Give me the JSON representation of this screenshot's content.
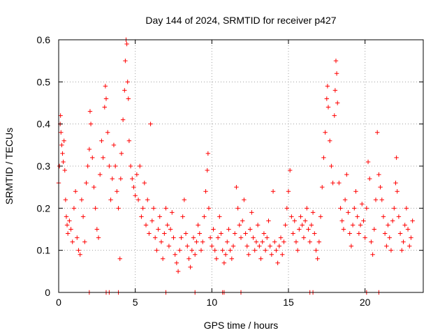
{
  "chart_data": {
    "type": "scatter",
    "title": "Day 144 of 2024, SRMTID for receiver p427",
    "xlabel": "GPS time / hours",
    "ylabel": "SRMTID / TECUs",
    "xlim": [
      0,
      23.8
    ],
    "ylim": [
      0,
      0.6
    ],
    "xticks": [
      0,
      5,
      10,
      15,
      20
    ],
    "yticks": [
      0,
      0.1,
      0.2,
      0.3,
      0.4,
      0.5,
      0.6
    ],
    "xtick_labels": [
      "0",
      "5",
      "10",
      "15",
      "20"
    ],
    "ytick_labels": [
      "0",
      "0.1",
      "0.2",
      "0.3",
      "0.4",
      "0.5",
      "0.6"
    ],
    "grid": true,
    "marker": "+",
    "color": "#ff0000",
    "series": [
      {
        "name": "SRMTID",
        "points": [
          [
            0.0,
            0.26
          ],
          [
            0.05,
            0.3
          ],
          [
            0.1,
            0.4
          ],
          [
            0.12,
            0.42
          ],
          [
            0.15,
            0.38
          ],
          [
            0.2,
            0.35
          ],
          [
            0.25,
            0.33
          ],
          [
            0.3,
            0.31
          ],
          [
            0.35,
            0.36
          ],
          [
            0.4,
            0.29
          ],
          [
            0.45,
            0.22
          ],
          [
            0.5,
            0.18
          ],
          [
            0.55,
            0.16
          ],
          [
            0.6,
            0.14
          ],
          [
            0.7,
            0.17
          ],
          [
            0.8,
            0.15
          ],
          [
            0.9,
            0.12
          ],
          [
            1.0,
            0.2
          ],
          [
            1.1,
            0.24
          ],
          [
            1.2,
            0.13
          ],
          [
            1.3,
            0.1
          ],
          [
            1.4,
            0.09
          ],
          [
            1.5,
            0.22
          ],
          [
            1.6,
            0.18
          ],
          [
            1.7,
            0.12
          ],
          [
            1.8,
            0.26
          ],
          [
            1.9,
            0.3
          ],
          [
            2.0,
            0.34
          ],
          [
            2.05,
            0.43
          ],
          [
            2.1,
            0.4
          ],
          [
            2.2,
            0.32
          ],
          [
            2.3,
            0.25
          ],
          [
            2.4,
            0.2
          ],
          [
            2.5,
            0.15
          ],
          [
            2.6,
            0.13
          ],
          [
            2.7,
            0.28
          ],
          [
            2.8,
            0.36
          ],
          [
            2.9,
            0.32
          ],
          [
            3.0,
            0.44
          ],
          [
            3.05,
            0.49
          ],
          [
            3.1,
            0.46
          ],
          [
            3.2,
            0.38
          ],
          [
            3.3,
            0.3
          ],
          [
            3.4,
            0.22
          ],
          [
            3.5,
            0.27
          ],
          [
            3.6,
            0.35
          ],
          [
            3.7,
            0.3
          ],
          [
            3.8,
            0.24
          ],
          [
            3.9,
            0.2
          ],
          [
            4.0,
            0.08
          ],
          [
            4.05,
            0.27
          ],
          [
            4.1,
            0.33
          ],
          [
            4.2,
            0.41
          ],
          [
            4.3,
            0.48
          ],
          [
            4.35,
            0.55
          ],
          [
            4.4,
            0.6
          ],
          [
            4.45,
            0.59
          ],
          [
            4.5,
            0.5
          ],
          [
            4.55,
            0.46
          ],
          [
            4.6,
            0.36
          ],
          [
            4.7,
            0.3
          ],
          [
            4.8,
            0.27
          ],
          [
            4.9,
            0.25
          ],
          [
            5.0,
            0.23
          ],
          [
            5.1,
            0.28
          ],
          [
            5.2,
            0.22
          ],
          [
            5.3,
            0.3
          ],
          [
            5.4,
            0.18
          ],
          [
            5.5,
            0.2
          ],
          [
            5.6,
            0.26
          ],
          [
            5.7,
            0.16
          ],
          [
            5.8,
            0.22
          ],
          [
            5.9,
            0.14
          ],
          [
            6.0,
            0.4
          ],
          [
            6.1,
            0.17
          ],
          [
            6.2,
            0.2
          ],
          [
            6.3,
            0.13
          ],
          [
            6.4,
            0.1
          ],
          [
            6.5,
            0.15
          ],
          [
            6.6,
            0.18
          ],
          [
            6.7,
            0.12
          ],
          [
            6.8,
            0.08
          ],
          [
            6.9,
            0.14
          ],
          [
            7.0,
            0.2
          ],
          [
            7.1,
            0.16
          ],
          [
            7.2,
            0.11
          ],
          [
            7.3,
            0.15
          ],
          [
            7.4,
            0.19
          ],
          [
            7.5,
            0.13
          ],
          [
            7.6,
            0.09
          ],
          [
            7.7,
            0.07
          ],
          [
            7.8,
            0.05
          ],
          [
            7.9,
            0.1
          ],
          [
            8.0,
            0.13
          ],
          [
            8.1,
            0.18
          ],
          [
            8.2,
            0.22
          ],
          [
            8.3,
            0.14
          ],
          [
            8.4,
            0.11
          ],
          [
            8.5,
            0.08
          ],
          [
            8.6,
            0.06
          ],
          [
            8.7,
            0.1
          ],
          [
            8.8,
            0.13
          ],
          [
            8.9,
            0.09
          ],
          [
            9.0,
            0.12
          ],
          [
            9.1,
            0.16
          ],
          [
            9.2,
            0.14
          ],
          [
            9.3,
            0.1
          ],
          [
            9.4,
            0.12
          ],
          [
            9.5,
            0.18
          ],
          [
            9.6,
            0.24
          ],
          [
            9.7,
            0.29
          ],
          [
            9.75,
            0.33
          ],
          [
            9.8,
            0.2
          ],
          [
            9.9,
            0.13
          ],
          [
            10.0,
            0.11
          ],
          [
            10.1,
            0.15
          ],
          [
            10.2,
            0.1
          ],
          [
            10.3,
            0.08
          ],
          [
            10.4,
            0.13
          ],
          [
            10.5,
            0.18
          ],
          [
            10.6,
            0.14
          ],
          [
            10.7,
            0.1
          ],
          [
            10.8,
            0.07
          ],
          [
            10.9,
            0.09
          ],
          [
            11.0,
            0.12
          ],
          [
            11.1,
            0.15
          ],
          [
            11.2,
            0.1
          ],
          [
            11.3,
            0.08
          ],
          [
            11.4,
            0.11
          ],
          [
            11.5,
            0.14
          ],
          [
            11.6,
            0.25
          ],
          [
            11.7,
            0.2
          ],
          [
            11.8,
            0.16
          ],
          [
            11.9,
            0.13
          ],
          [
            12.0,
            0.17
          ],
          [
            12.1,
            0.22
          ],
          [
            12.2,
            0.14
          ],
          [
            12.3,
            0.11
          ],
          [
            12.4,
            0.09
          ],
          [
            12.5,
            0.15
          ],
          [
            12.6,
            0.19
          ],
          [
            12.7,
            0.13
          ],
          [
            12.8,
            0.1
          ],
          [
            12.9,
            0.12
          ],
          [
            13.0,
            0.16
          ],
          [
            13.1,
            0.11
          ],
          [
            13.2,
            0.08
          ],
          [
            13.3,
            0.12
          ],
          [
            13.4,
            0.14
          ],
          [
            13.5,
            0.1
          ],
          [
            13.6,
            0.13
          ],
          [
            13.7,
            0.17
          ],
          [
            13.8,
            0.11
          ],
          [
            13.9,
            0.09
          ],
          [
            14.0,
            0.24
          ],
          [
            14.1,
            0.12
          ],
          [
            14.2,
            0.1
          ],
          [
            14.3,
            0.07
          ],
          [
            14.4,
            0.11
          ],
          [
            14.5,
            0.13
          ],
          [
            14.6,
            0.09
          ],
          [
            14.7,
            0.12
          ],
          [
            14.8,
            0.16
          ],
          [
            14.9,
            0.2
          ],
          [
            15.0,
            0.24
          ],
          [
            15.1,
            0.29
          ],
          [
            15.2,
            0.18
          ],
          [
            15.3,
            0.14
          ],
          [
            15.4,
            0.17
          ],
          [
            15.5,
            0.12
          ],
          [
            15.6,
            0.1
          ],
          [
            15.7,
            0.15
          ],
          [
            15.8,
            0.18
          ],
          [
            15.9,
            0.16
          ],
          [
            16.0,
            0.13
          ],
          [
            16.1,
            0.17
          ],
          [
            16.2,
            0.2
          ],
          [
            16.3,
            0.15
          ],
          [
            16.4,
            0.12
          ],
          [
            16.5,
            0.16
          ],
          [
            16.6,
            0.19
          ],
          [
            16.7,
            0.14
          ],
          [
            16.8,
            0.1
          ],
          [
            16.9,
            0.08
          ],
          [
            17.0,
            0.12
          ],
          [
            17.1,
            0.18
          ],
          [
            17.2,
            0.25
          ],
          [
            17.3,
            0.32
          ],
          [
            17.4,
            0.38
          ],
          [
            17.5,
            0.46
          ],
          [
            17.55,
            0.49
          ],
          [
            17.6,
            0.44
          ],
          [
            17.7,
            0.36
          ],
          [
            17.8,
            0.3
          ],
          [
            17.9,
            0.26
          ],
          [
            18.0,
            0.42
          ],
          [
            18.05,
            0.48
          ],
          [
            18.1,
            0.55
          ],
          [
            18.15,
            0.52
          ],
          [
            18.2,
            0.45
          ],
          [
            18.3,
            0.26
          ],
          [
            18.4,
            0.2
          ],
          [
            18.5,
            0.17
          ],
          [
            18.6,
            0.15
          ],
          [
            18.7,
            0.22
          ],
          [
            18.8,
            0.28
          ],
          [
            18.9,
            0.19
          ],
          [
            19.0,
            0.14
          ],
          [
            19.1,
            0.11
          ],
          [
            19.2,
            0.16
          ],
          [
            19.3,
            0.2
          ],
          [
            19.4,
            0.24
          ],
          [
            19.5,
            0.18
          ],
          [
            19.6,
            0.14
          ],
          [
            19.7,
            0.16
          ],
          [
            19.8,
            0.21
          ],
          [
            19.9,
            0.17
          ],
          [
            20.0,
            0.13
          ],
          [
            20.1,
            0.2
          ],
          [
            20.2,
            0.31
          ],
          [
            20.3,
            0.27
          ],
          [
            20.4,
            0.12
          ],
          [
            20.5,
            0.09
          ],
          [
            20.6,
            0.15
          ],
          [
            20.7,
            0.22
          ],
          [
            20.8,
            0.38
          ],
          [
            20.9,
            0.28
          ],
          [
            21.0,
            0.25
          ],
          [
            21.1,
            0.22
          ],
          [
            21.2,
            0.18
          ],
          [
            21.3,
            0.14
          ],
          [
            21.4,
            0.11
          ],
          [
            21.5,
            0.16
          ],
          [
            21.6,
            0.13
          ],
          [
            21.7,
            0.1
          ],
          [
            21.8,
            0.17
          ],
          [
            21.9,
            0.2
          ],
          [
            22.0,
            0.26
          ],
          [
            22.05,
            0.32
          ],
          [
            22.1,
            0.24
          ],
          [
            22.2,
            0.18
          ],
          [
            22.3,
            0.14
          ],
          [
            22.4,
            0.1
          ],
          [
            22.5,
            0.12
          ],
          [
            22.6,
            0.16
          ],
          [
            22.7,
            0.2
          ],
          [
            22.8,
            0.15
          ],
          [
            22.9,
            0.11
          ],
          [
            23.0,
            0.13
          ],
          [
            23.1,
            0.17
          ],
          [
            2.0,
            0.0
          ],
          [
            3.1,
            0.0
          ],
          [
            3.3,
            0.0
          ],
          [
            3.9,
            0.0
          ],
          [
            7.0,
            0.0
          ],
          [
            8.9,
            0.0
          ],
          [
            10.7,
            0.0
          ],
          [
            10.8,
            0.0
          ],
          [
            11.9,
            0.0
          ],
          [
            16.4,
            0.0
          ],
          [
            16.6,
            0.0
          ],
          [
            20.1,
            0.0
          ],
          [
            20.9,
            0.0
          ]
        ]
      }
    ]
  }
}
